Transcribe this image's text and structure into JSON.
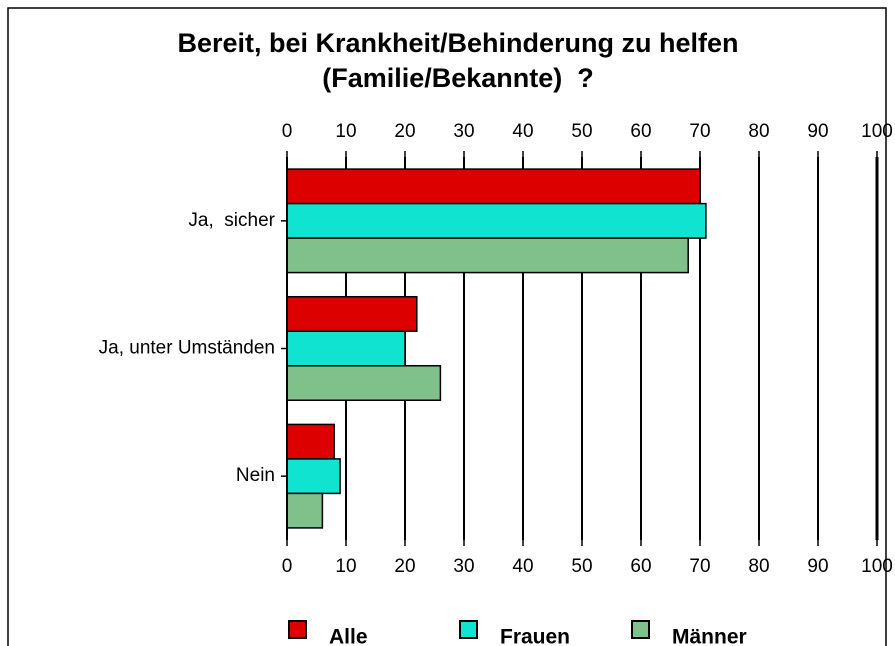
{
  "chart_data": {
    "type": "hbar",
    "title": [
      "Bereit, bei Krankheit/Behinderung zu helfen",
      "(Familie/Bekannte)  ?"
    ],
    "categories": [
      "Ja,  sicher",
      "Ja, unter Umständen",
      "Nein"
    ],
    "series": [
      {
        "name": "Alle",
        "color": "#dd0000",
        "values": [
          70,
          22,
          8
        ]
      },
      {
        "name": "Frauen",
        "color": "#10e3cf",
        "values": [
          71,
          20,
          9
        ]
      },
      {
        "name": "Männer",
        "color": "#80c08a",
        "values": [
          68,
          26,
          6
        ]
      }
    ],
    "xlim": [
      0,
      100
    ],
    "xticks": [
      0,
      10,
      20,
      30,
      40,
      50,
      60,
      70,
      80,
      90,
      100
    ],
    "grid": true,
    "legend": "bottom"
  }
}
